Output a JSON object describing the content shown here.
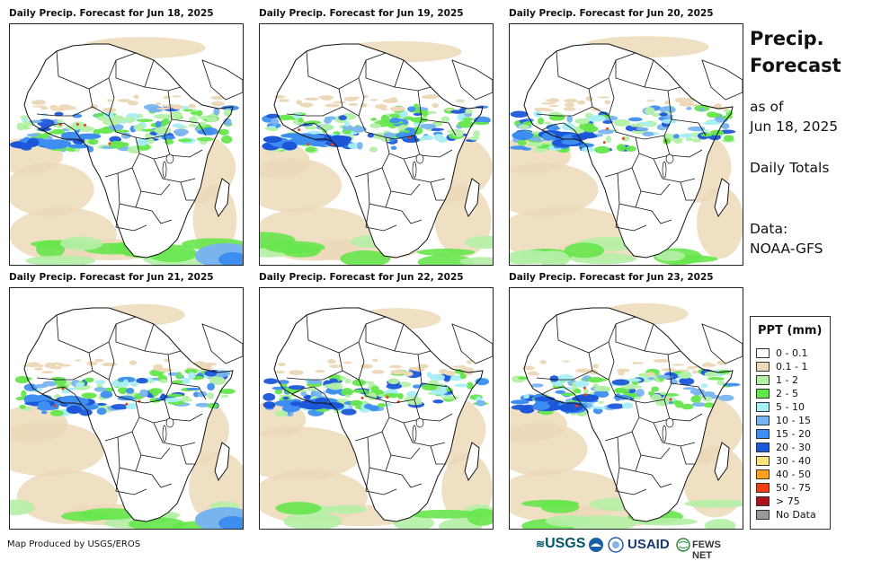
{
  "panels": [
    {
      "title": "Daily Precip. Forecast for Jun 18, 2025"
    },
    {
      "title": "Daily Precip. Forecast for Jun 19, 2025"
    },
    {
      "title": "Daily Precip. Forecast for Jun 20, 2025"
    },
    {
      "title": "Daily Precip. Forecast for Jun 21, 2025"
    },
    {
      "title": "Daily Precip. Forecast for Jun 22, 2025"
    },
    {
      "title": "Daily Precip. Forecast for Jun 23, 2025"
    }
  ],
  "side": {
    "title_line1": "Precip.",
    "title_line2": "Forecast",
    "asof_line1": "as of",
    "asof_line2": "Jun 18, 2025",
    "totals": "Daily Totals",
    "data_line1": "Data:",
    "data_line2": "NOAA-GFS"
  },
  "legend": {
    "title": "PPT (mm)",
    "items": [
      {
        "label": "0 - 0.1",
        "color": "#ffffff"
      },
      {
        "label": "0.1 - 1",
        "color": "#ecd9b9"
      },
      {
        "label": "1 - 2",
        "color": "#b4f0a6"
      },
      {
        "label": "2 - 5",
        "color": "#66e64d"
      },
      {
        "label": "5 - 10",
        "color": "#a8eef5"
      },
      {
        "label": "10 - 15",
        "color": "#79b4ef"
      },
      {
        "label": "15 - 20",
        "color": "#3d8ef0"
      },
      {
        "label": "20 - 30",
        "color": "#1d57d9"
      },
      {
        "label": "30 - 40",
        "color": "#fde37e"
      },
      {
        "label": "40 - 50",
        "color": "#fca21f"
      },
      {
        "label": "50 - 75",
        "color": "#f03f14"
      },
      {
        "label": "> 75",
        "color": "#a8161b"
      },
      {
        "label": "No Data",
        "color": "#999999"
      }
    ]
  },
  "footer": {
    "credit": "Map Produced by USGS/EROS",
    "logo_usgs": "USGS",
    "logo_usaid": "USAID",
    "logo_fews": "FEWS NET"
  }
}
